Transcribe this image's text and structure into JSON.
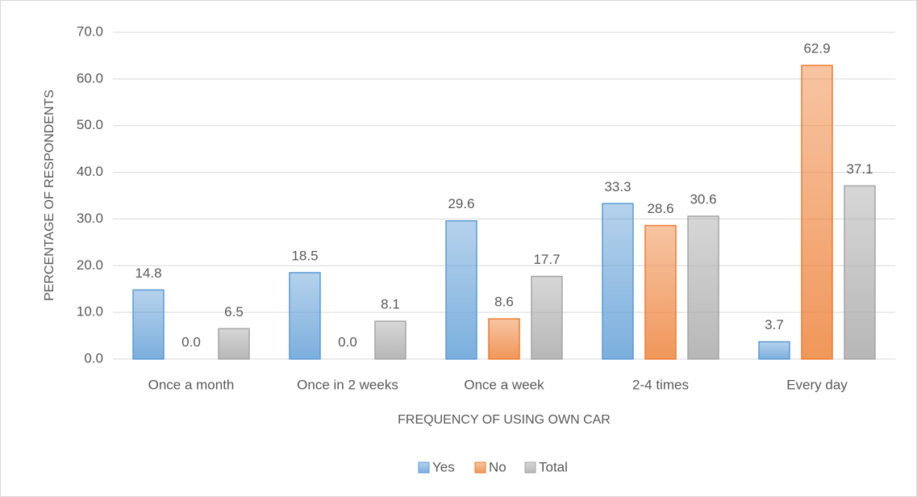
{
  "chart_data": {
    "type": "bar",
    "categories": [
      "Once a month",
      "Once in 2 weeks",
      "Once a week",
      "2-4 times",
      "Every day"
    ],
    "series": [
      {
        "name": "Yes",
        "color": "#5b9bd5",
        "values": [
          14.8,
          18.5,
          29.6,
          33.3,
          3.7
        ],
        "value_labels": [
          "14.8",
          "18.5",
          "29.6",
          "33.3",
          "3.7"
        ]
      },
      {
        "name": "No",
        "color": "#ed7d31",
        "values": [
          0,
          0,
          8.6,
          28.6,
          62.9
        ],
        "value_labels": [
          "0.0",
          "0.0",
          "8.6",
          "28.6",
          "62.9"
        ]
      },
      {
        "name": "Total",
        "color": "#a5a5a5",
        "values": [
          6.5,
          8.1,
          17.7,
          30.6,
          37.1
        ],
        "value_labels": [
          "6.5",
          "8.1",
          "17.7",
          "30.6",
          "37.1"
        ]
      }
    ],
    "xlabel": "FREQUENCY OF USING OWN CAR",
    "ylabel": "PERCENTAGE OF RESPONDENTS",
    "ylim": [
      0,
      70
    ],
    "yticks": [
      {
        "value": 0,
        "label": "0.0"
      },
      {
        "value": 10,
        "label": "10.0"
      },
      {
        "value": 20,
        "label": "20.0"
      },
      {
        "value": 30,
        "label": "30.0"
      },
      {
        "value": 40,
        "label": "40.0"
      },
      {
        "value": 50,
        "label": "50.0"
      },
      {
        "value": 60,
        "label": "60.0"
      },
      {
        "value": 70,
        "label": "70.0"
      }
    ],
    "grid": true,
    "legend": "bottom"
  }
}
